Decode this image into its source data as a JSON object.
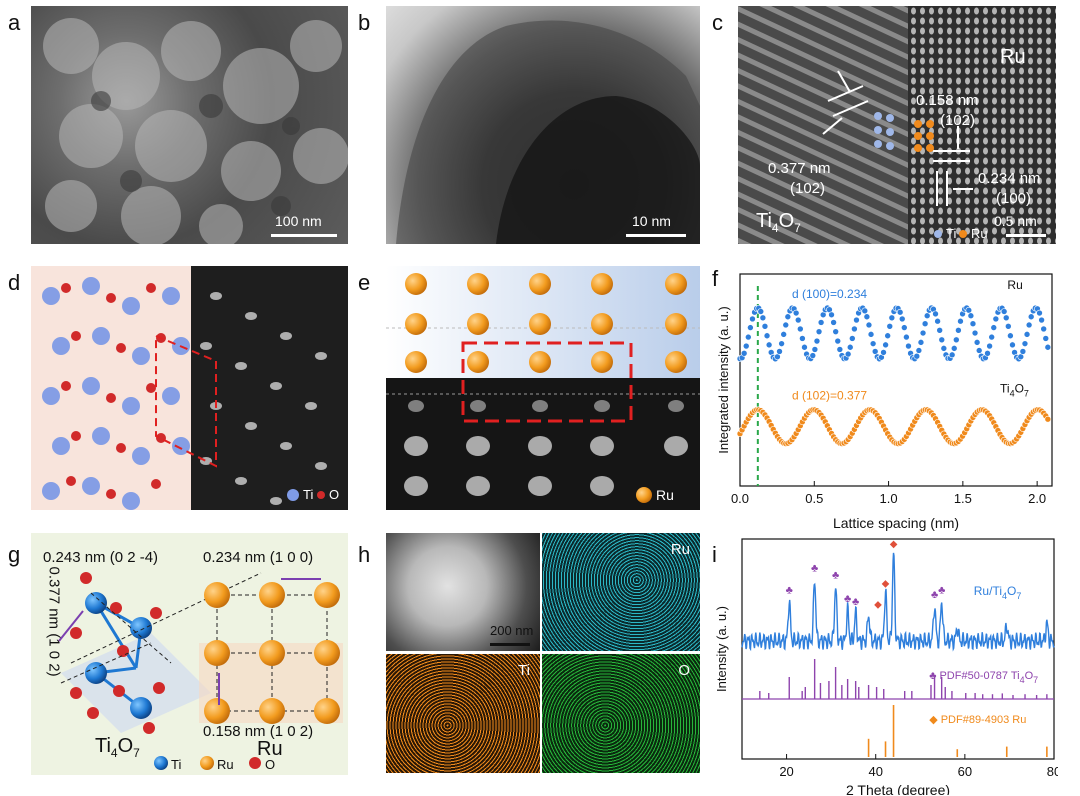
{
  "panels": {
    "a": {
      "letter": "a",
      "scale_bar": "100 nm"
    },
    "b": {
      "letter": "b",
      "scale_bar": "10 nm"
    },
    "c": {
      "letter": "c",
      "scale_bar": "0.5 nm",
      "label_ru": "Ru",
      "label_ti4o7_base": "Ti",
      "label_ti4o7_sub": "4",
      "label_ti4o7_end": "O",
      "label_ti4o7_sub2": "7",
      "spacing1": "0.377 nm",
      "plane1": "(102)",
      "spacing2": "0.158 nm",
      "plane2": "(102)",
      "spacing3": "0.234 nm",
      "plane3": "(100)",
      "legend_ti": "Ti",
      "legend_ru": "Ru"
    },
    "d": {
      "letter": "d",
      "legend_ti": "Ti",
      "legend_o": "O"
    },
    "e": {
      "letter": "e",
      "legend_ru": "Ru"
    },
    "f": {
      "letter": "f"
    },
    "g": {
      "letter": "g",
      "top_left": "0.243 nm (0 2 -4)",
      "top_right": "0.234 nm (1 0 0)",
      "side": "0.377 nm (1 0 2)",
      "bottom": "0.158 nm (1 0 2)",
      "ti4o7_base": "Ti",
      "ti4o7_sub": "4",
      "ti4o7_mid": "O",
      "ti4o7_sub2": "7",
      "ru": "Ru",
      "legend_ti": "Ti",
      "legend_ru": "Ru",
      "legend_o": "O"
    },
    "h": {
      "letter": "h",
      "scale_bar": "200 nm",
      "map_ru": "Ru",
      "map_ti": "Ti",
      "map_o": "O"
    },
    "i": {
      "letter": "i"
    }
  },
  "colors": {
    "blue": "#2f7fdc",
    "orange": "#f08a1c",
    "purple": "#8e44ad",
    "green_dash": "#2aa84a",
    "ru_ball": "#f29b1e",
    "ti_ball": "#6a8fe0",
    "o_ball": "#d42a2a"
  },
  "chart_data": [
    {
      "type": "line",
      "panel": "f",
      "xlabel": "Lattice spacing (nm)",
      "ylabel": "Integrated intensity (a. u.)",
      "xlim": [
        0.0,
        2.1
      ],
      "xticks": [
        "0.0",
        "0.5",
        "1.0",
        "1.5",
        "2.0"
      ],
      "marker_x": 0.12,
      "series": [
        {
          "name": "Ru",
          "annotation": "d (100)=0.234",
          "color": "#2f7fdc",
          "period": 0.234,
          "phase": 0.12,
          "offset": 0.72,
          "amplitude": 0.12
        },
        {
          "name": "Ti4O7",
          "annotation": "d (102)=0.377",
          "color": "#f08a1c",
          "period": 0.377,
          "phase": 0.12,
          "offset": 0.28,
          "amplitude": 0.08
        }
      ],
      "series_labels": {
        "ru": "Ru",
        "ti_base": "Ti",
        "ti_sub": "4",
        "ti_mid": "O",
        "ti_sub2": "7"
      }
    },
    {
      "type": "line",
      "panel": "i",
      "xlabel": "2 Theta (degree)",
      "ylabel": "Intensity (a. u.)",
      "xlim": [
        10,
        80
      ],
      "xticks": [
        "20",
        "40",
        "60",
        "80"
      ],
      "series": [
        {
          "name": "Ru/Ti4O7",
          "color": "#2f7fdc",
          "peaks": [
            [
              20.6,
              0.45
            ],
            [
              26.3,
              0.7
            ],
            [
              31.0,
              0.62
            ],
            [
              33.7,
              0.35
            ],
            [
              35.5,
              0.32
            ],
            [
              38.4,
              0.3
            ],
            [
              42.2,
              0.55
            ],
            [
              44.0,
              1.0
            ],
            [
              53.2,
              0.4
            ],
            [
              54.8,
              0.45
            ],
            [
              58.3,
              0.15
            ],
            [
              69.4,
              0.18
            ],
            [
              78.4,
              0.2
            ]
          ]
        },
        {
          "name": "PDF#50-0787 Ti4O7",
          "color": "#8e44ad",
          "sticks": [
            [
              14.0,
              0.2
            ],
            [
              16.0,
              0.15
            ],
            [
              20.6,
              0.55
            ],
            [
              23.5,
              0.2
            ],
            [
              24.2,
              0.3
            ],
            [
              26.3,
              1.0
            ],
            [
              27.6,
              0.4
            ],
            [
              29.5,
              0.45
            ],
            [
              31.0,
              0.8
            ],
            [
              32.4,
              0.35
            ],
            [
              33.7,
              0.5
            ],
            [
              35.5,
              0.45
            ],
            [
              36.2,
              0.3
            ],
            [
              38.4,
              0.35
            ],
            [
              40.2,
              0.3
            ],
            [
              41.8,
              0.25
            ],
            [
              46.5,
              0.2
            ],
            [
              48.1,
              0.2
            ],
            [
              52.4,
              0.35
            ],
            [
              53.2,
              0.6
            ],
            [
              54.8,
              0.55
            ],
            [
              55.6,
              0.3
            ],
            [
              57.1,
              0.2
            ],
            [
              60.2,
              0.15
            ],
            [
              62.3,
              0.15
            ],
            [
              64.0,
              0.12
            ],
            [
              66.2,
              0.12
            ],
            [
              68.4,
              0.14
            ],
            [
              70.8,
              0.1
            ],
            [
              73.5,
              0.12
            ],
            [
              76.1,
              0.1
            ],
            [
              78.4,
              0.12
            ]
          ]
        },
        {
          "name": "PDF#89-4903 Ru",
          "color": "#f08a1c",
          "sticks": [
            [
              38.4,
              0.35
            ],
            [
              42.2,
              0.3
            ],
            [
              44.0,
              1.0
            ],
            [
              58.3,
              0.15
            ],
            [
              69.4,
              0.2
            ],
            [
              78.4,
              0.2
            ]
          ]
        }
      ],
      "labels": {
        "main_base": "Ru/Ti",
        "main_sub": "4",
        "main_end": "O",
        "main_sub2": "7",
        "ref1_base": "PDF#50-0787 Ti",
        "ref1_sub": "4",
        "ref1_mid": "O",
        "ref1_sub2": "7",
        "ref2": "PDF#89-4903 Ru",
        "club": "♣",
        "diamond": "◆"
      }
    }
  ]
}
